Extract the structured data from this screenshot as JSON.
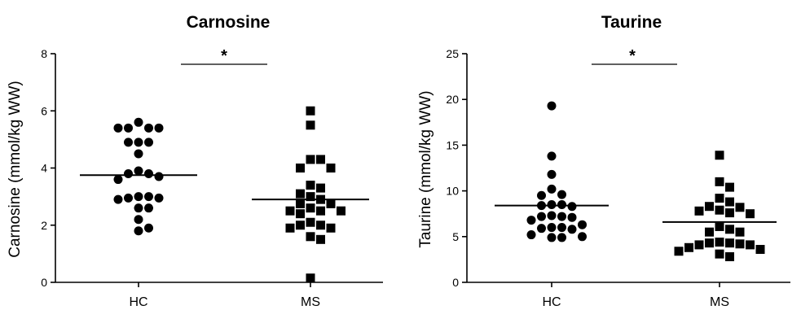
{
  "chart_data": [
    {
      "type": "scatter",
      "title": "Carnosine",
      "ylabel": "Carnosine (mmol/kg WW)",
      "xlabel": "",
      "categories": [
        "HC",
        "MS"
      ],
      "ylim": [
        0,
        8
      ],
      "yticks": [
        0,
        2,
        4,
        6,
        8
      ],
      "significance": "*",
      "grid": false,
      "series": [
        {
          "marker": "circle",
          "values": [
            5.6,
            5.4,
            5.4,
            5.4,
            5.4,
            4.9,
            4.9,
            4.9,
            4.5,
            3.9,
            3.8,
            3.8,
            3.7,
            3.6,
            3.0,
            3.0,
            2.95,
            2.95,
            2.9,
            2.6,
            2.6,
            2.2,
            1.9,
            1.8
          ],
          "mean": 3.75
        },
        {
          "marker": "square",
          "values": [
            6.0,
            5.5,
            4.3,
            4.3,
            4.0,
            4.0,
            3.4,
            3.3,
            3.1,
            3.0,
            2.9,
            2.75,
            2.75,
            2.6,
            2.5,
            2.5,
            2.5,
            2.4,
            2.1,
            2.0,
            2.0,
            1.9,
            1.9,
            1.6,
            1.5,
            0.15
          ],
          "mean": 2.9
        }
      ]
    },
    {
      "type": "scatter",
      "title": "Taurine",
      "ylabel": "Taurine (mmol/kg WW)",
      "xlabel": "",
      "categories": [
        "HC",
        "MS"
      ],
      "ylim": [
        0,
        25
      ],
      "yticks": [
        0,
        5,
        10,
        15,
        20,
        25
      ],
      "significance": "*",
      "grid": false,
      "series": [
        {
          "marker": "circle",
          "values": [
            19.3,
            13.8,
            11.8,
            10.2,
            9.6,
            9.5,
            8.5,
            8.5,
            8.4,
            8.3,
            7.3,
            7.2,
            7.2,
            7.1,
            6.8,
            6.3,
            6.0,
            6.0,
            5.9,
            5.8,
            5.2,
            5.0,
            4.9,
            4.9
          ],
          "mean": 8.4
        },
        {
          "marker": "square",
          "values": [
            13.9,
            11.0,
            10.4,
            9.2,
            8.8,
            8.3,
            8.2,
            7.9,
            7.8,
            7.6,
            7.5,
            6.1,
            5.8,
            5.5,
            5.5,
            4.4,
            4.3,
            4.3,
            4.2,
            4.1,
            4.1,
            3.8,
            3.6,
            3.4,
            3.1,
            2.8
          ],
          "mean": 6.6
        }
      ]
    }
  ]
}
